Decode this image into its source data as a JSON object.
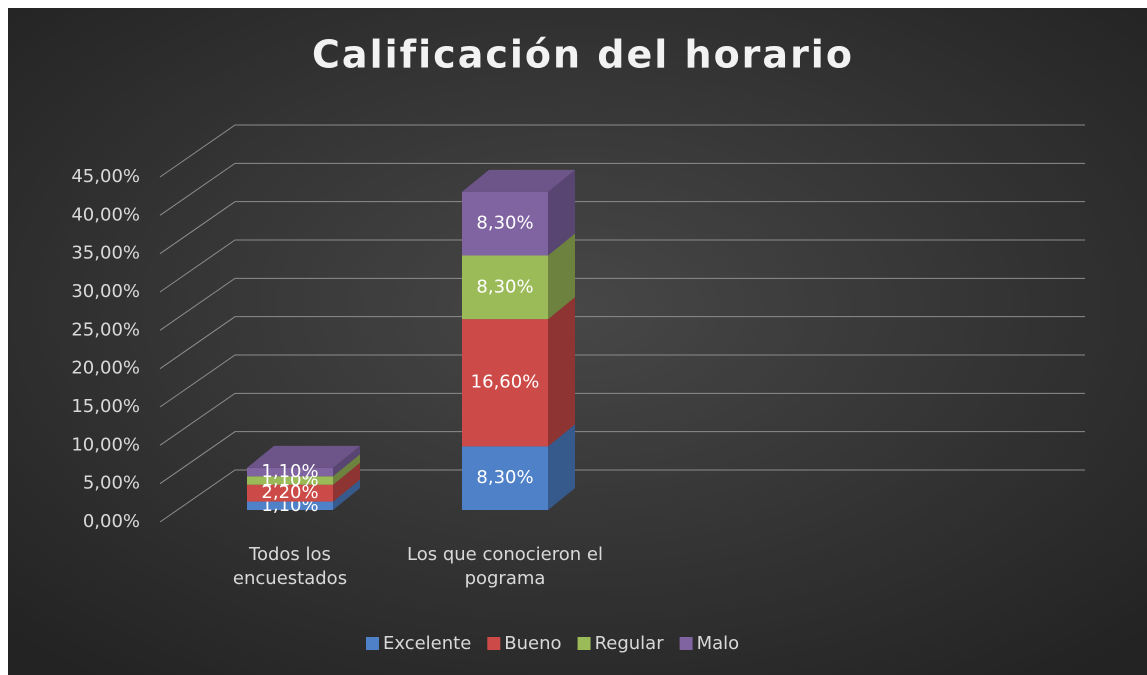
{
  "chart_data": {
    "type": "bar3d_stacked",
    "title": "Calificación del horario",
    "categories": [
      "Todos los encuestados",
      "Los que conocieron el pograma"
    ],
    "series": [
      {
        "name": "Excelente",
        "color": "#4f81c9",
        "values": [
          1.1,
          8.3
        ],
        "value_labels": [
          "1,10%",
          "8,30%"
        ]
      },
      {
        "name": "Bueno",
        "color": "#cc4b48",
        "values": [
          2.2,
          16.6
        ],
        "value_labels": [
          "2,20%",
          "16,60%"
        ]
      },
      {
        "name": "Regular",
        "color": "#9bbb59",
        "values": [
          1.1,
          8.3
        ],
        "value_labels": [
          "1,10%",
          "8,30%"
        ]
      },
      {
        "name": "Malo",
        "color": "#8064a2",
        "values": [
          1.1,
          8.3
        ],
        "value_labels": [
          "1,10%",
          "8,30%"
        ]
      }
    ],
    "ylim": [
      0,
      45
    ],
    "yticks": [
      {
        "value": 0,
        "label": "0,00%"
      },
      {
        "value": 5,
        "label": "5,00%"
      },
      {
        "value": 10,
        "label": "10,00%"
      },
      {
        "value": 15,
        "label": "15,00%"
      },
      {
        "value": 20,
        "label": "20,00%"
      },
      {
        "value": 25,
        "label": "25,00%"
      },
      {
        "value": 30,
        "label": "30,00%"
      },
      {
        "value": 35,
        "label": "35,00%"
      },
      {
        "value": 40,
        "label": "40,00%"
      },
      {
        "value": 45,
        "label": "45,00%"
      }
    ],
    "grid": true,
    "legend": "bottom"
  }
}
